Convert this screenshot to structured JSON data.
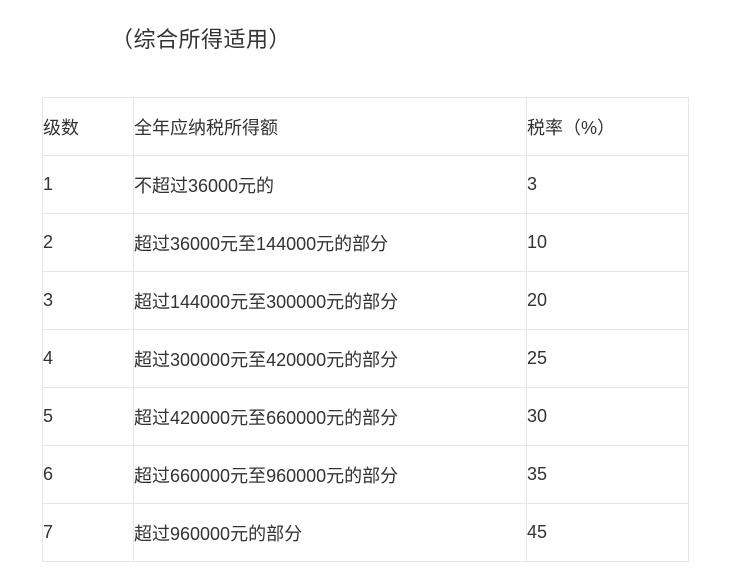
{
  "page": {
    "title": "（综合所得适用）"
  },
  "colors": {
    "text": "#333333",
    "border": "#e7e7e7",
    "background": "#ffffff"
  },
  "table": {
    "headers": [
      "级数",
      "全年应纳税所得额",
      "税率（%）"
    ],
    "rows": [
      {
        "level": "1",
        "income": "不超过36000元的",
        "rate": "3"
      },
      {
        "level": "2",
        "income": "超过36000元至144000元的部分",
        "rate": "10"
      },
      {
        "level": "3",
        "income": "超过144000元至300000元的部分",
        "rate": "20"
      },
      {
        "level": "4",
        "income": "超过300000元至420000元的部分",
        "rate": "25"
      },
      {
        "level": "5",
        "income": "超过420000元至660000元的部分",
        "rate": "30"
      },
      {
        "level": "6",
        "income": "超过660000元至960000元的部分",
        "rate": "35"
      },
      {
        "level": "7",
        "income": "超过960000元的部分",
        "rate": "45"
      }
    ]
  }
}
